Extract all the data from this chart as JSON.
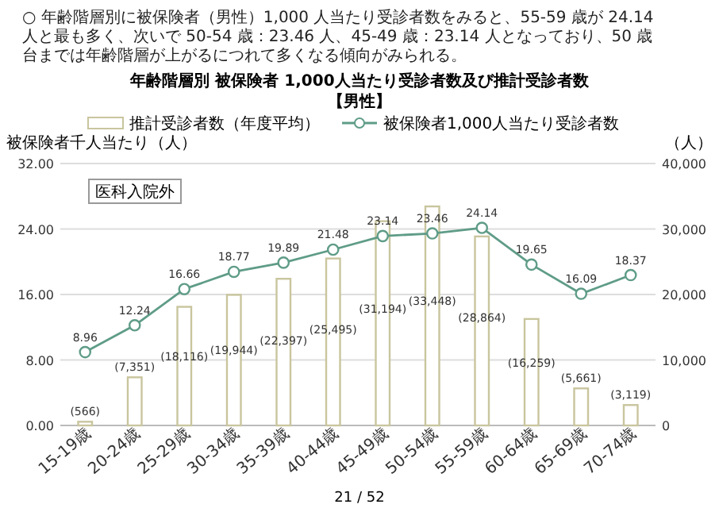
{
  "chart_data": {
    "type": "bar",
    "title": "年齢階層別 被保険者 1,000人当たり受診者数及び推計受診者数",
    "subtitle": "【男性】",
    "ylabel": "被保険者千人当たり（人）",
    "y2label": "（人）",
    "annotations": [
      "○ 年齢階層別に被保険者（男性）1,000 人当たり受診者数をみると、55-59 歳が 24.14 人と最も多く、次いで 50-54 歳：23.46 人、45-49 歳：23.14 人となっており、50 歳台までは年齢階層が上がるにつれて多くなる傾向がみられる。",
      "医科入院外",
      "21 / 52"
    ],
    "categories": [
      "15-19歳",
      "20-24歳",
      "25-29歳",
      "30-34歳",
      "35-39歳",
      "40-44歳",
      "45-49歳",
      "50-54歳",
      "55-59歳",
      "60-64歳",
      "65-69歳",
      "70-74歳"
    ],
    "series": [
      {
        "name": "推計受診者数（年度平均）",
        "axis": "y2",
        "color": "#c9c59e",
        "values": [
          566,
          7351,
          18116,
          19944,
          22397,
          25495,
          31194,
          33448,
          28864,
          16259,
          5661,
          3119
        ],
        "value_labels": [
          "(566)",
          "(7,351)",
          "(18,116)",
          "(19,944)",
          "(22,397)",
          "(25,495)",
          "(31,194)",
          "(33,448)",
          "(28,864)",
          "(16,259)",
          "(5,661)",
          "(3,119)"
        ]
      },
      {
        "name": "被保険者1,000人当たり受診者数",
        "type": "line",
        "color": "#5f9c88",
        "marker": "circle",
        "values": [
          8.96,
          12.24,
          16.66,
          18.77,
          19.89,
          21.48,
          23.14,
          23.46,
          24.14,
          19.65,
          16.09,
          18.37
        ],
        "data_labels": true
      }
    ],
    "ylim": [
      0,
      32
    ],
    "yticks": [
      {
        "value": 0,
        "label": "0.00"
      },
      {
        "value": 8,
        "label": "8.00"
      },
      {
        "value": 16,
        "label": "16.00"
      },
      {
        "value": 24,
        "label": "24.00"
      },
      {
        "value": 32,
        "label": "32.00"
      }
    ],
    "y2lim": [
      0,
      40000
    ],
    "y2ticks": [
      0,
      {
        "value": 10000,
        "label": "10,000"
      },
      {
        "value": 20000,
        "label": "20,000"
      },
      {
        "value": 30000,
        "label": "30,000"
      },
      {
        "value": 40000,
        "label": "40,000"
      }
    ],
    "grid": "y",
    "legend": "top"
  }
}
